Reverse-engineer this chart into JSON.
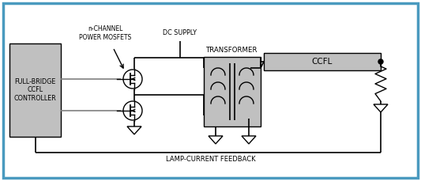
{
  "bg_color": "#ffffff",
  "border_color": "#4a9abf",
  "line_color": "#000000",
  "gray_fill": "#c0c0c0",
  "wire_color": "#808080",
  "feedback_label": "LAMP-CURRENT FEEDBACK",
  "transformer_label": "TRANSFORMER",
  "ccfl_label": "CCFL",
  "dc_supply_label": "DC SUPPLY",
  "mosfet_label": "n-CHANNEL\nPOWER MOSFETS",
  "controller_label": "FULL-BRIDGE\nCCFL\nCONTROLLER",
  "figw": 5.33,
  "figh": 2.29,
  "dpi": 100
}
